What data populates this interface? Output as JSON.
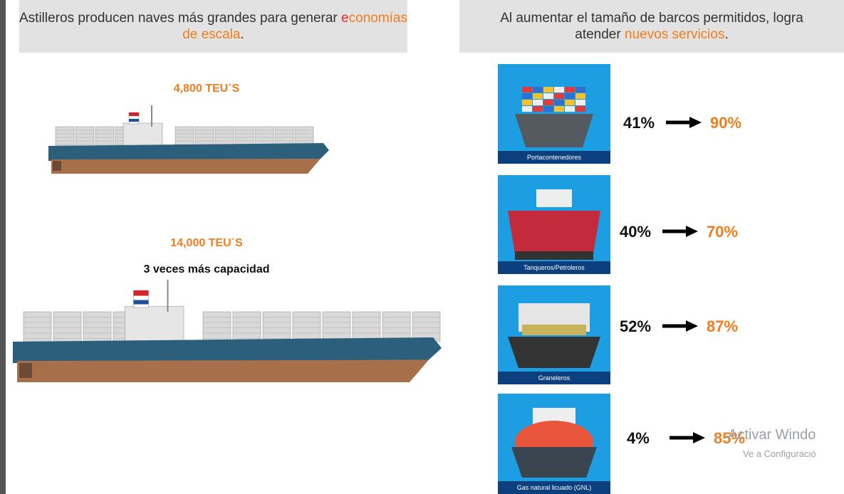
{
  "left": {
    "header": {
      "text": "Astilleros producen naves más grandes para generar",
      "highlight_first": "e",
      "highlight_rest": "conomías de escala",
      "end": "."
    },
    "small_ship": {
      "label": "4,800 TEU´S"
    },
    "large_ship": {
      "label": "14,000 TEU´S",
      "caption": "3 veces más capacidad"
    }
  },
  "right": {
    "header": {
      "line1": "Al aumentar el tamaño de barcos permitidos, logra",
      "line2": "atender",
      "highlight": "nuevos servicios",
      "end": "."
    },
    "ships": [
      {
        "label": "Portacontenedores",
        "from": "41%",
        "to": "90%"
      },
      {
        "label": "Tanqueros/Petroleros",
        "from": "40%",
        "to": "70%"
      },
      {
        "label": "Graneleros",
        "from": "52%",
        "to": "87%"
      },
      {
        "label": "Gas natural licuado (GNL)",
        "from": "4%",
        "to": "85%"
      }
    ]
  },
  "watermark": {
    "title": "Activar Windo",
    "subtitle": "Ve a Configuració"
  }
}
